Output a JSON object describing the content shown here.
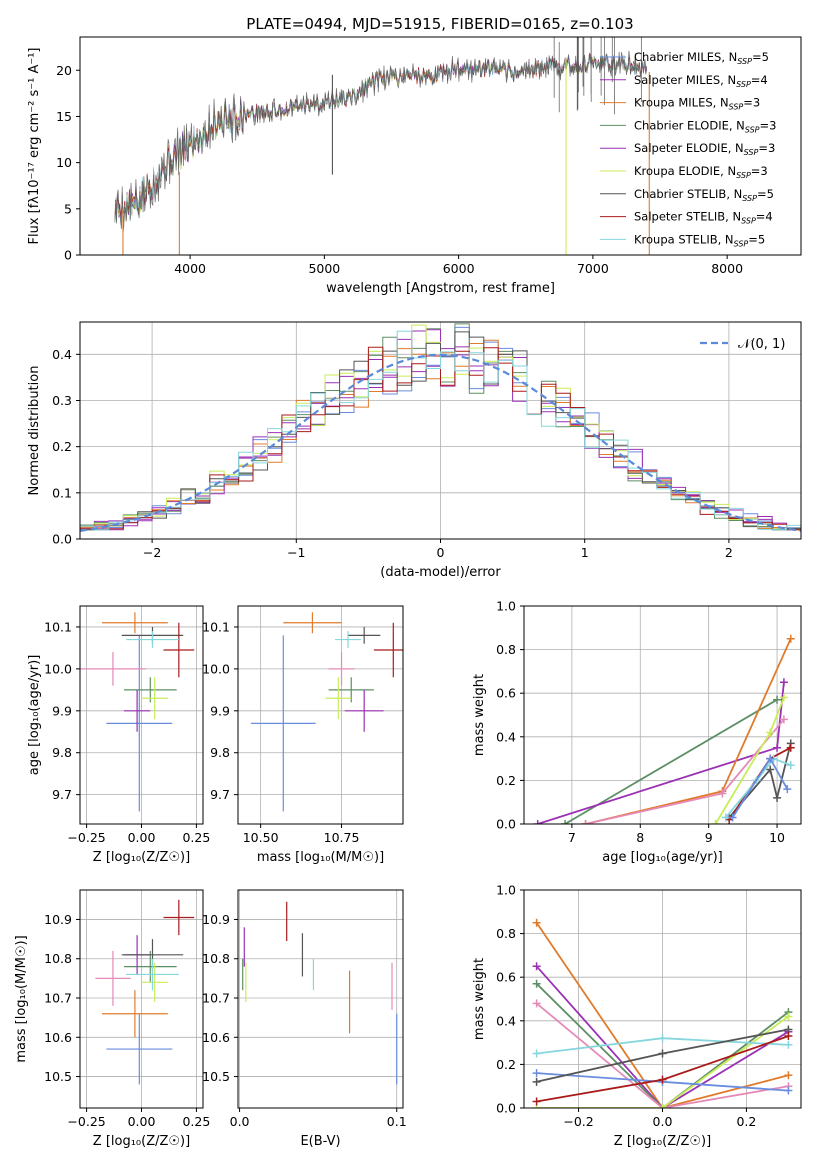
{
  "figure_title": "PLATE=0494, MJD=51915, FIBERID=0165, z=0.103",
  "colors": {
    "Chabrier MILES": "#6a8ddf",
    "Salpeter MILES": "#9b30b5",
    "Kroupa MILES": "#e07b2b",
    "Chabrier ELODIE": "#5d8f64",
    "Salpeter ELODIE": "#9b30b5",
    "Kroupa ELODIE": "#c9ec5a",
    "Chabrier STELIB": "#555555",
    "Salpeter STELIB": "#aa1b1b",
    "Kroupa STELIB": "#86d6dd",
    "pink": "#e58ab8",
    "gaussian": "#5b8ad8"
  },
  "chart_data": [
    {
      "id": "spectrum",
      "type": "line",
      "xlabel": "wavelength [Angstrom, rest frame]",
      "ylabel": "Flux [fλ10⁻¹⁷ erg cm⁻² s⁻¹ A⁻¹]",
      "xlim": [
        3180,
        8550
      ],
      "ylim": [
        0,
        23.6
      ],
      "xticks": [
        4000,
        5000,
        6000,
        7000,
        8000
      ],
      "yticks": [
        0,
        5,
        10,
        15,
        20
      ],
      "legend_position": "upper-right",
      "legend": [
        {
          "lib": "Chabrier MILES",
          "base": "Chabrier MILES, N",
          "sub": "SSP",
          "rest": "=5"
        },
        {
          "lib": "Salpeter MILES",
          "base": "Salpeter MILES, N",
          "sub": "SSP",
          "rest": "=4"
        },
        {
          "lib": "Kroupa MILES",
          "base": "Kroupa MILES, N",
          "sub": "SSP",
          "rest": "=3"
        },
        {
          "lib": "Chabrier ELODIE",
          "base": "Chabrier ELODIE, N",
          "sub": "SSP",
          "rest": "=3"
        },
        {
          "lib": "Salpeter ELODIE",
          "base": "Salpeter ELODIE, N",
          "sub": "SSP",
          "rest": "=3"
        },
        {
          "lib": "Kroupa ELODIE",
          "base": "Kroupa ELODIE, N",
          "sub": "SSP",
          "rest": "=3"
        },
        {
          "lib": "Chabrier STELIB",
          "base": "Chabrier STELIB, N",
          "sub": "SSP",
          "rest": "=5"
        },
        {
          "lib": "Salpeter STELIB",
          "base": "Salpeter STELIB, N",
          "sub": "SSP",
          "rest": "=4"
        },
        {
          "lib": "Kroupa STELIB",
          "base": "Kroupa STELIB, N",
          "sub": "SSP",
          "rest": "=5"
        }
      ],
      "spectrum_envelope": [
        [
          3440,
          5.0
        ],
        [
          3600,
          5.5
        ],
        [
          3800,
          9.5
        ],
        [
          4000,
          12.0
        ],
        [
          4200,
          14.5
        ],
        [
          4400,
          15.2
        ],
        [
          4600,
          15.5
        ],
        [
          4800,
          16.0
        ],
        [
          5000,
          16.6
        ],
        [
          5200,
          17.0
        ],
        [
          5400,
          19.0
        ],
        [
          5600,
          19.5
        ],
        [
          5800,
          19.4
        ],
        [
          6000,
          20.2
        ],
        [
          6200,
          20.2
        ],
        [
          6400,
          19.7
        ],
        [
          6600,
          20.2
        ],
        [
          6800,
          20.5
        ],
        [
          7000,
          20.8
        ],
        [
          7200,
          20.7
        ],
        [
          7400,
          20.2
        ]
      ],
      "artifacts": [
        {
          "x": 3500,
          "y0": 0,
          "y1": 5.0,
          "lib": "Kroupa MILES"
        },
        {
          "x": 3920,
          "y0": 0,
          "y1": 9.0,
          "lib": "Kroupa MILES"
        },
        {
          "x": 5060,
          "y0": 8.7,
          "y1": 19.5,
          "lib": "Chabrier STELIB"
        },
        {
          "x": 6800,
          "y0": 0,
          "y1": 21.0,
          "lib": "Kroupa ELODIE"
        },
        {
          "x": 7420,
          "y0": 0,
          "y1": 19.8,
          "lib": "Kroupa MILES"
        }
      ]
    },
    {
      "id": "residuals",
      "type": "histogram",
      "xlabel": "(data-model)/error",
      "ylabel": "Normed distribution",
      "xlim": [
        -2.5,
        2.5
      ],
      "ylim": [
        0,
        0.47
      ],
      "xticks": [
        -2,
        -1,
        0,
        1,
        2
      ],
      "yticks": [
        0.0,
        0.1,
        0.2,
        0.3,
        0.4
      ],
      "grid": true,
      "bin_width": 0.1,
      "legend": {
        "label": "𝒩(0, 1)"
      },
      "reference_curve": "normal pdf, mean 0, sigma 1"
    },
    {
      "id": "age_vs_Z",
      "type": "errorbar",
      "xlabel": "Z [log₁₀(Z/Z☉)]",
      "ylabel": "age  [log₁₀(age/yr)]",
      "xlim": [
        -0.28,
        0.28
      ],
      "ylim": [
        9.63,
        10.15
      ],
      "xticks": [
        -0.25,
        0.0,
        0.25
      ],
      "xticklabels": [
        "−0.25",
        "0.00",
        "0.25"
      ],
      "yticks": [
        9.7,
        9.8,
        9.9,
        10.0,
        10.1
      ],
      "grid": true,
      "points": [
        {
          "lib": "Chabrier MILES",
          "x": -0.01,
          "xerr": 0.15,
          "y": 9.87,
          "yerr": 0.21
        },
        {
          "lib": "Kroupa MILES",
          "x": -0.03,
          "xerr": 0.15,
          "y": 10.11,
          "yerr": 0.025
        },
        {
          "lib": "pink",
          "x": -0.13,
          "xerr": 0.15,
          "y": 10.0,
          "yerr": 0.04
        },
        {
          "lib": "Chabrier ELODIE",
          "x": 0.04,
          "xerr": 0.12,
          "y": 9.95,
          "yerr": 0.03
        },
        {
          "lib": "Salpeter ELODIE",
          "x": -0.02,
          "xerr": 0.06,
          "y": 9.9,
          "yerr": 0.05
        },
        {
          "lib": "Kroupa ELODIE",
          "x": 0.06,
          "xerr": 0.06,
          "y": 9.93,
          "yerr": 0.05
        },
        {
          "lib": "Chabrier STELIB",
          "x": 0.05,
          "xerr": 0.14,
          "y": 10.08,
          "yerr": 0.02
        },
        {
          "lib": "Salpeter STELIB",
          "x": 0.17,
          "xerr": 0.07,
          "y": 10.045,
          "yerr": 0.065
        },
        {
          "lib": "Kroupa STELIB",
          "x": 0.05,
          "xerr": 0.12,
          "y": 10.07,
          "yerr": 0.02
        }
      ]
    },
    {
      "id": "age_vs_mass",
      "type": "errorbar",
      "xlabel": "mass [log₁₀(M/M☉)]",
      "xlim": [
        10.43,
        10.94
      ],
      "ylim": [
        9.63,
        10.15
      ],
      "xticks": [
        10.5,
        10.75
      ],
      "xticklabels": [
        "10.50",
        "10.75"
      ],
      "yticks": [
        9.7,
        9.8,
        9.9,
        10.0,
        10.1
      ],
      "grid": true,
      "points": [
        {
          "lib": "Chabrier MILES",
          "x": 10.57,
          "xerr": 0.1,
          "y": 9.87,
          "yerr": 0.21
        },
        {
          "lib": "Kroupa MILES",
          "x": 10.66,
          "xerr": 0.09,
          "y": 10.11,
          "yerr": 0.025
        },
        {
          "lib": "pink",
          "x": 10.75,
          "xerr": 0.04,
          "y": 10.0,
          "yerr": 0.04
        },
        {
          "lib": "Chabrier ELODIE",
          "x": 10.78,
          "xerr": 0.07,
          "y": 9.95,
          "yerr": 0.03
        },
        {
          "lib": "Salpeter ELODIE",
          "x": 10.82,
          "xerr": 0.06,
          "y": 9.9,
          "yerr": 0.05
        },
        {
          "lib": "Kroupa ELODIE",
          "x": 10.74,
          "xerr": 0.04,
          "y": 9.93,
          "yerr": 0.05
        },
        {
          "lib": "Chabrier STELIB",
          "x": 10.82,
          "xerr": 0.05,
          "y": 10.08,
          "yerr": 0.02
        },
        {
          "lib": "Salpeter STELIB",
          "x": 10.91,
          "xerr": 0.06,
          "y": 10.045,
          "yerr": 0.065
        },
        {
          "lib": "Kroupa STELIB",
          "x": 10.77,
          "xerr": 0.04,
          "y": 10.07,
          "yerr": 0.02
        }
      ]
    },
    {
      "id": "weight_vs_age",
      "type": "line",
      "xlabel": "age  [log₁₀(age/yr)]",
      "ylabel": "mass weight",
      "xlim": [
        6.3,
        10.35
      ],
      "ylim": [
        0,
        1.0
      ],
      "xticks": [
        7,
        8,
        9,
        10
      ],
      "yticks": [
        0.0,
        0.2,
        0.4,
        0.6,
        0.8,
        1.0
      ],
      "grid": true,
      "series": [
        {
          "lib": "Chabrier ELODIE",
          "x": [
            6.9,
            10.0
          ],
          "y": [
            0.0,
            0.57
          ]
        },
        {
          "lib": "Salpeter ELODIE",
          "x": [
            6.5,
            10.0,
            10.1
          ],
          "y": [
            0.0,
            0.35,
            0.65
          ]
        },
        {
          "lib": "Kroupa MILES",
          "x": [
            7.2,
            9.2,
            10.2
          ],
          "y": [
            0.0,
            0.15,
            0.85
          ]
        },
        {
          "lib": "pink",
          "x": [
            7.2,
            9.2,
            10.1
          ],
          "y": [
            0.0,
            0.14,
            0.48
          ]
        },
        {
          "lib": "Kroupa ELODIE",
          "x": [
            9.1,
            9.9,
            10.1
          ],
          "y": [
            0.0,
            0.42,
            0.58
          ]
        },
        {
          "lib": "Chabrier STELIB",
          "x": [
            9.3,
            9.9,
            10.0,
            10.2
          ],
          "y": [
            0.03,
            0.25,
            0.12,
            0.37
          ]
        },
        {
          "lib": "Salpeter STELIB",
          "x": [
            9.3,
            9.9,
            10.2
          ],
          "y": [
            0.02,
            0.3,
            0.35
          ]
        },
        {
          "lib": "Kroupa STELIB",
          "x": [
            9.25,
            9.7,
            9.95,
            10.2
          ],
          "y": [
            0.03,
            0.2,
            0.3,
            0.27
          ]
        },
        {
          "lib": "Chabrier MILES",
          "x": [
            9.35,
            9.9,
            10.15
          ],
          "y": [
            0.03,
            0.3,
            0.16
          ]
        }
      ]
    },
    {
      "id": "mass_vs_Z",
      "type": "errorbar",
      "xlabel": "Z [log₁₀(Z/Z☉)]",
      "ylabel": "mass [log₁₀(M/M☉)]",
      "xlim": [
        -0.28,
        0.28
      ],
      "ylim": [
        10.42,
        10.975
      ],
      "xticks": [
        -0.25,
        0.0,
        0.25
      ],
      "xticklabels": [
        "−0.25",
        "0.00",
        "0.25"
      ],
      "yticks": [
        10.5,
        10.6,
        10.7,
        10.8,
        10.9
      ],
      "grid": true,
      "points": [
        {
          "lib": "Chabrier MILES",
          "x": -0.01,
          "xerr": 0.15,
          "y": 10.57,
          "yerr": 0.09
        },
        {
          "lib": "Kroupa MILES",
          "x": -0.03,
          "xerr": 0.15,
          "y": 10.66,
          "yerr": 0.06
        },
        {
          "lib": "pink",
          "x": -0.13,
          "xerr": 0.08,
          "y": 10.75,
          "yerr": 0.07
        },
        {
          "lib": "Chabrier ELODIE",
          "x": 0.04,
          "xerr": 0.12,
          "y": 10.78,
          "yerr": 0.04
        },
        {
          "lib": "Salpeter ELODIE",
          "x": -0.02,
          "xerr": 0.06,
          "y": 10.81,
          "yerr": 0.05
        },
        {
          "lib": "Kroupa ELODIE",
          "x": 0.06,
          "xerr": 0.06,
          "y": 10.74,
          "yerr": 0.05
        },
        {
          "lib": "Chabrier STELIB",
          "x": 0.05,
          "xerr": 0.14,
          "y": 10.81,
          "yerr": 0.04
        },
        {
          "lib": "Salpeter STELIB",
          "x": 0.17,
          "xerr": 0.07,
          "y": 10.905,
          "yerr": 0.045
        },
        {
          "lib": "Kroupa STELIB",
          "x": 0.05,
          "xerr": 0.12,
          "y": 10.76,
          "yerr": 0.04
        }
      ]
    },
    {
      "id": "mass_vs_ebv",
      "type": "errorbar",
      "xlabel": "E(B-V)",
      "xlim": [
        -0.001,
        0.104
      ],
      "ylim": [
        10.42,
        10.975
      ],
      "xticks": [
        0.0,
        0.1
      ],
      "xticklabels": [
        "0.0",
        "0.1"
      ],
      "yticks": [
        10.5,
        10.6,
        10.7,
        10.8,
        10.9
      ],
      "grid": true,
      "points": [
        {
          "lib": "Chabrier MILES",
          "x": 0.1,
          "xerr": 0,
          "y": 10.57,
          "yerr": 0.09
        },
        {
          "lib": "Kroupa MILES",
          "x": 0.07,
          "xerr": 0,
          "y": 10.69,
          "yerr": 0.08
        },
        {
          "lib": "pink",
          "x": 0.097,
          "xerr": 0,
          "y": 10.73,
          "yerr": 0.06
        },
        {
          "lib": "Chabrier ELODIE",
          "x": 0.002,
          "xerr": 0,
          "y": 10.76,
          "yerr": 0.04
        },
        {
          "lib": "Salpeter ELODIE",
          "x": 0.003,
          "xerr": 0,
          "y": 10.83,
          "yerr": 0.05
        },
        {
          "lib": "Kroupa ELODIE",
          "x": 0.004,
          "xerr": 0,
          "y": 10.74,
          "yerr": 0.05
        },
        {
          "lib": "Chabrier STELIB",
          "x": 0.04,
          "xerr": 0,
          "y": 10.81,
          "yerr": 0.055
        },
        {
          "lib": "Salpeter STELIB",
          "x": 0.03,
          "xerr": 0,
          "y": 10.895,
          "yerr": 0.05
        },
        {
          "lib": "Kroupa STELIB",
          "x": 0.047,
          "xerr": 0,
          "y": 10.76,
          "yerr": 0.04
        }
      ]
    },
    {
      "id": "weight_vs_Z",
      "type": "line",
      "xlabel": "Z [log₁₀(Z/Z☉)]",
      "ylabel": "mass weight",
      "xlim": [
        -0.33,
        0.33
      ],
      "ylim": [
        0,
        1.0
      ],
      "xticks": [
        -0.2,
        0.0,
        0.2
      ],
      "xticklabels": [
        "−0.2",
        "0.0",
        "0.2"
      ],
      "yticks": [
        0.0,
        0.2,
        0.4,
        0.6,
        0.8,
        1.0
      ],
      "grid": true,
      "series": [
        {
          "lib": "Kroupa MILES",
          "x": [
            -0.3,
            0.0,
            0.3
          ],
          "y": [
            0.85,
            0.0,
            0.15
          ]
        },
        {
          "lib": "Salpeter ELODIE",
          "x": [
            -0.3,
            0.0,
            0.3
          ],
          "y": [
            0.65,
            0.0,
            0.35
          ]
        },
        {
          "lib": "Chabrier ELODIE",
          "x": [
            -0.3,
            0.0,
            0.3
          ],
          "y": [
            0.57,
            0.0,
            0.44
          ]
        },
        {
          "lib": "pink",
          "x": [
            -0.3,
            0.0,
            0.3
          ],
          "y": [
            0.48,
            0.0,
            0.1
          ]
        },
        {
          "lib": "Kroupa ELODIE",
          "x": [
            -0.3,
            0.0,
            0.3
          ],
          "y": [
            0.0,
            0.0,
            0.42
          ]
        },
        {
          "lib": "Kroupa STELIB",
          "x": [
            -0.3,
            0.0,
            0.3
          ],
          "y": [
            0.25,
            0.32,
            0.29
          ]
        },
        {
          "lib": "Chabrier MILES",
          "x": [
            -0.3,
            0.0,
            0.3
          ],
          "y": [
            0.16,
            0.12,
            0.08
          ]
        },
        {
          "lib": "Chabrier STELIB",
          "x": [
            -0.3,
            0.0,
            0.3
          ],
          "y": [
            0.12,
            0.25,
            0.36
          ]
        },
        {
          "lib": "Salpeter STELIB",
          "x": [
            -0.3,
            0.0,
            0.3
          ],
          "y": [
            0.03,
            0.13,
            0.33
          ]
        }
      ]
    }
  ]
}
